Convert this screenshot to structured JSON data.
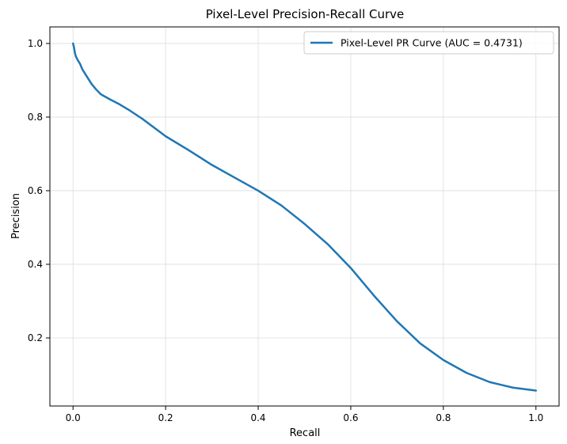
{
  "chart_data": {
    "type": "line",
    "title": "Pixel-Level Precision-Recall Curve",
    "xlabel": "Recall",
    "ylabel": "Precision",
    "xlim": [
      -0.05,
      1.05
    ],
    "ylim": [
      0.015,
      1.045
    ],
    "xticks": [
      0.0,
      0.2,
      0.4,
      0.6,
      0.8,
      1.0
    ],
    "xtick_labels": [
      "0.0",
      "0.2",
      "0.4",
      "0.6",
      "0.8",
      "1.0"
    ],
    "yticks": [
      0.2,
      0.4,
      0.6,
      0.8,
      1.0
    ],
    "ytick_labels": [
      "0.2",
      "0.4",
      "0.6",
      "0.8",
      "1.0"
    ],
    "grid": true,
    "legend_position": "top-right",
    "series": [
      {
        "name": "Pixel-Level PR Curve (AUC = 0.4731)",
        "color": "#1f77b4",
        "x": [
          0.0,
          0.002,
          0.004,
          0.006,
          0.01,
          0.015,
          0.02,
          0.03,
          0.04,
          0.05,
          0.06,
          0.07,
          0.08,
          0.1,
          0.12,
          0.15,
          0.2,
          0.25,
          0.3,
          0.35,
          0.4,
          0.45,
          0.5,
          0.55,
          0.6,
          0.65,
          0.7,
          0.75,
          0.8,
          0.85,
          0.9,
          0.95,
          1.0
        ],
        "y": [
          1.0,
          0.99,
          0.975,
          0.965,
          0.955,
          0.945,
          0.93,
          0.91,
          0.89,
          0.875,
          0.862,
          0.855,
          0.848,
          0.835,
          0.82,
          0.795,
          0.748,
          0.71,
          0.67,
          0.635,
          0.6,
          0.56,
          0.51,
          0.455,
          0.39,
          0.315,
          0.245,
          0.185,
          0.14,
          0.105,
          0.08,
          0.065,
          0.057
        ]
      }
    ]
  }
}
